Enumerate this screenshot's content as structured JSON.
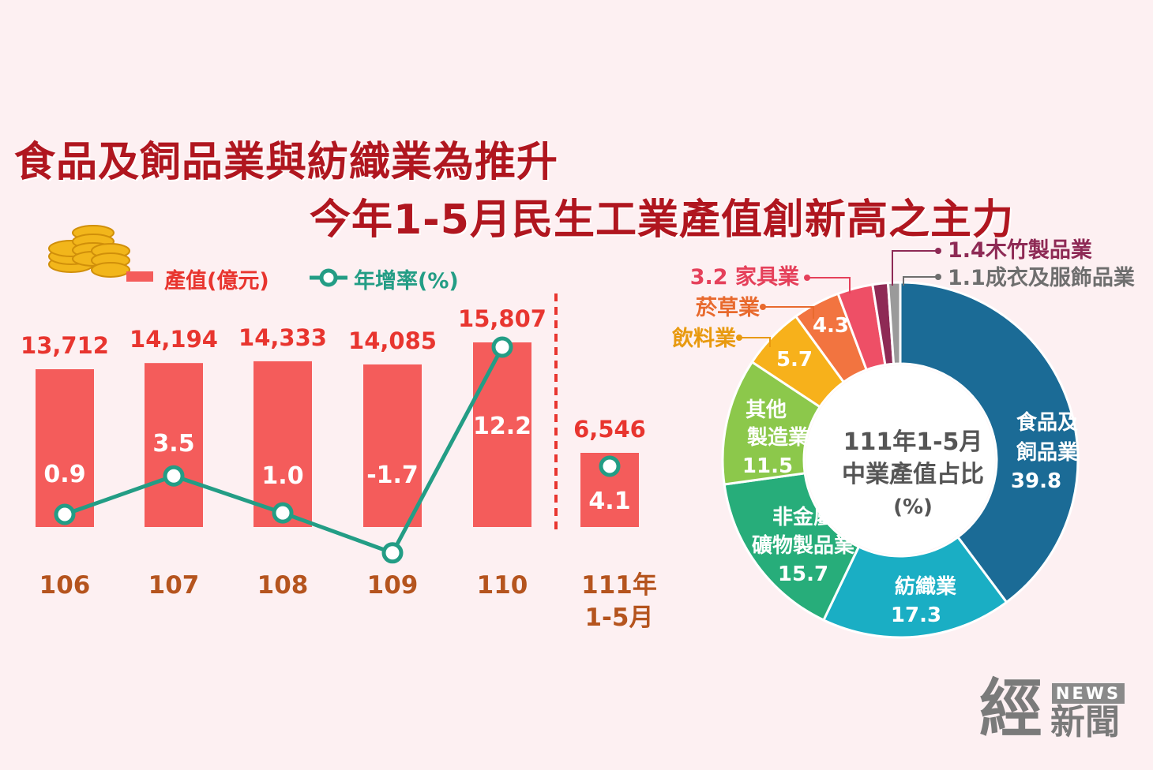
{
  "title": {
    "line1": "食品及飼品業與紡織業為推升",
    "line2": "今年1-5月民生工業產值創新高之主力"
  },
  "legend": {
    "bar_label": "產值(億元)",
    "line_label": "年增率(%)"
  },
  "colors": {
    "bar": "#f45c5b",
    "line": "#239d85",
    "value_text": "#e8352f",
    "year_text": "#b5541e",
    "title": "#b0161f"
  },
  "chart_data": [
    {
      "type": "bar",
      "categories": [
        "106",
        "107",
        "108",
        "109",
        "110",
        "111年\n1-5月"
      ],
      "series": [
        {
          "name": "產值(億元)",
          "values": [
            13712,
            14194,
            14333,
            14085,
            15807,
            6546
          ],
          "labels": [
            "13,712",
            "14,194",
            "14,333",
            "14,085",
            "15,807",
            "6,546"
          ]
        },
        {
          "name": "年增率(%)",
          "type": "line",
          "values": [
            0.9,
            3.5,
            1.0,
            -1.7,
            12.2,
            4.1
          ],
          "labels": [
            "0.9",
            "3.5",
            "1.0",
            "-1.7",
            "12.2",
            "4.1"
          ]
        }
      ],
      "category_labels": [
        "106",
        "107",
        "108",
        "109",
        "110",
        "111年",
        "1-5月"
      ]
    },
    {
      "type": "pie",
      "center_text": [
        "111年1-5月",
        "中業產值占比",
        "(%)"
      ],
      "slices": [
        {
          "label": "食品及飼品業",
          "lines": [
            "食品及",
            "飼品業",
            "39.8"
          ],
          "value": 39.8,
          "color": "#1b6b96"
        },
        {
          "label": "紡織業",
          "lines": [
            "紡織業",
            "17.3"
          ],
          "value": 17.3,
          "color": "#1aaec4"
        },
        {
          "label": "非金屬礦物製品業",
          "lines": [
            "非金屬",
            "礦物製品業",
            "15.7"
          ],
          "value": 15.7,
          "color": "#27ad7a"
        },
        {
          "label": "其他製造業",
          "lines": [
            "其他",
            "製造業",
            "11.5"
          ],
          "value": 11.5,
          "color": "#8cc84b"
        },
        {
          "label": "飲料業",
          "lines": [
            "5.7"
          ],
          "value": 5.7,
          "color": "#f7b11b",
          "outside": "飲料業",
          "outside_color": "#e89a10"
        },
        {
          "label": "菸草業",
          "lines": [
            "4.3"
          ],
          "value": 4.3,
          "color": "#f27440",
          "outside": "菸草業",
          "outside_color": "#e86a2e"
        },
        {
          "label": "家具業",
          "lines": [],
          "value": 3.2,
          "color": "#ee4f66",
          "outside": "3.2 家具業",
          "outside_color": "#e5405a"
        },
        {
          "label": "木竹製品業",
          "lines": [],
          "value": 1.4,
          "color": "#8e2a55",
          "outside": "1.4木竹製品業",
          "outside_color": "#8e2a55"
        },
        {
          "label": "成衣及服飾品業",
          "lines": [],
          "value": 1.1,
          "color": "#9a9a9a",
          "outside": "1.1成衣及服飾品業",
          "outside_color": "#6e6e6e"
        }
      ]
    }
  ],
  "logo": {
    "main": "經",
    "news": "NEWS",
    "sub": "新聞"
  }
}
